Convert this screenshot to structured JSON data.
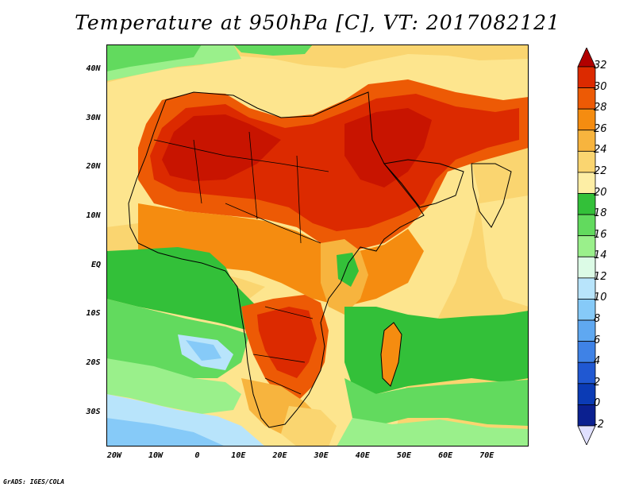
{
  "title": "Temperature at 950hPa [C], VT: 2017082121",
  "credit": "GrADS: IGES/COLA",
  "map": {
    "variable": "Temperature at 950hPa",
    "units": "C",
    "valid_time": "2017082121",
    "lon_range": [
      -22,
      80
    ],
    "lat_range": [
      -37,
      45
    ],
    "lon_ticks": [
      "20W",
      "10W",
      "0",
      "10E",
      "20E",
      "30E",
      "40E",
      "50E",
      "60E",
      "70E"
    ],
    "lat_ticks": [
      "40N",
      "30N",
      "20N",
      "10N",
      "EQ",
      "10S",
      "20S",
      "30S"
    ]
  },
  "colorbar": {
    "labels": [
      "32",
      "30",
      "28",
      "26",
      "24",
      "22",
      "20",
      "18",
      "16",
      "14",
      "12",
      "10",
      "8",
      "6",
      "4",
      "2",
      "0",
      "-2"
    ],
    "colors": [
      "#b10000",
      "#dc2a00",
      "#ed5a05",
      "#f58c10",
      "#f7b43e",
      "#fad570",
      "#fdeea5",
      "#33c039",
      "#62da5e",
      "#9af08b",
      "#dcfbe6",
      "#b8e4fb",
      "#86caf8",
      "#5fa8f1",
      "#3f82e6",
      "#2058d2",
      "#0b3bb5",
      "#0b2090",
      "#e0e0ff"
    ]
  }
}
